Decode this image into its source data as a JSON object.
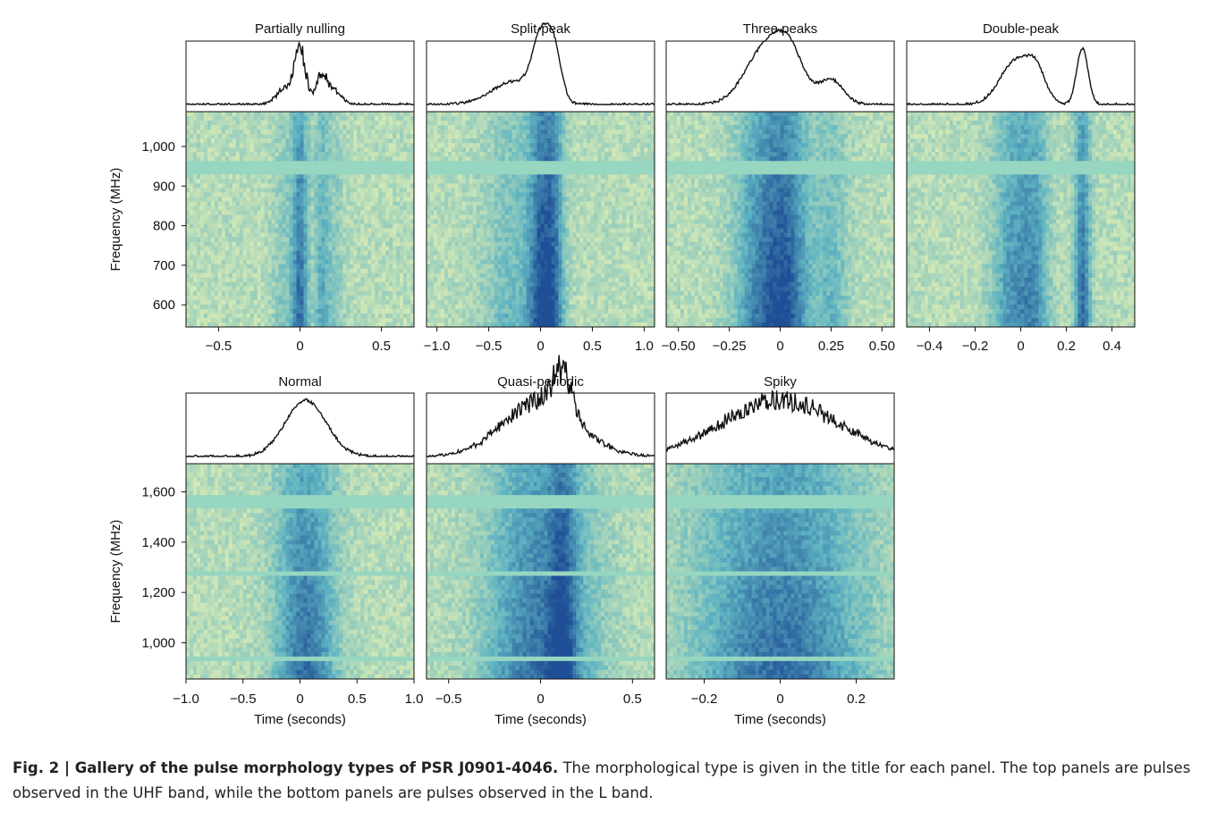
{
  "figure": {
    "caption_label": "Fig. 2 | Gallery of the pulse morphology types of PSR J0901-4046.",
    "caption_text": " The morphological type is given in the title for each panel. The top panels are pulses observed in the UHF band, while the bottom panels are pulses observed in the L band."
  },
  "colors": {
    "profile_line": "#111111",
    "map_low": "#e6f1b4",
    "map_mid": "#5fb4c2",
    "map_high": "#1f4f96",
    "flag_band": "#97d6c0"
  },
  "chart_data": [
    {
      "type": "heatmap",
      "title": "Partially nulling",
      "band": "UHF",
      "xlabel": "",
      "ylabel": "Frequency (MHz)",
      "xlim": [
        -0.7,
        0.7
      ],
      "ylim": [
        544,
        1088
      ],
      "xticks": [
        -0.5,
        0,
        0.5
      ],
      "xtick_labels": [
        "−0.5",
        "0",
        "0.5"
      ],
      "yticks": [
        600,
        700,
        800,
        900,
        1000
      ],
      "ytick_labels": [
        "600",
        "700",
        "800",
        "900",
        "1,000"
      ],
      "flagged_bands_mhz": [
        [
          930,
          962
        ]
      ],
      "profile_components": [
        {
          "center": -0.1,
          "width": 0.05,
          "amplitude": 0.25
        },
        {
          "center": 0.0,
          "width": 0.035,
          "amplitude": 0.95
        },
        {
          "center": 0.13,
          "width": 0.03,
          "amplitude": 0.45
        },
        {
          "center": 0.2,
          "width": 0.05,
          "amplitude": 0.25
        }
      ]
    },
    {
      "type": "heatmap",
      "title": "Split-peak",
      "band": "UHF",
      "xlabel": "",
      "ylabel": "",
      "xlim": [
        -1.1,
        1.1
      ],
      "ylim": [
        544,
        1088
      ],
      "xticks": [
        -1.0,
        -0.5,
        0,
        0.5,
        1.0
      ],
      "xtick_labels": [
        "−1.0",
        "−0.5",
        "0",
        "0.5",
        "1.0"
      ],
      "yticks": [],
      "ytick_labels": [],
      "flagged_bands_mhz": [
        [
          930,
          962
        ]
      ],
      "profile_components": [
        {
          "center": -0.25,
          "width": 0.22,
          "amplitude": 0.35
        },
        {
          "center": 0.0,
          "width": 0.08,
          "amplitude": 0.85
        },
        {
          "center": 0.13,
          "width": 0.07,
          "amplitude": 0.75
        }
      ]
    },
    {
      "type": "heatmap",
      "title": "Three peaks",
      "band": "UHF",
      "xlabel": "",
      "ylabel": "",
      "xlim": [
        -0.56,
        0.56
      ],
      "ylim": [
        544,
        1088
      ],
      "xticks": [
        -0.5,
        -0.25,
        0,
        0.25,
        0.5
      ],
      "xtick_labels": [
        "−0.50",
        "−0.25",
        "0",
        "0.25",
        "0.50"
      ],
      "yticks": [],
      "ytick_labels": [],
      "flagged_bands_mhz": [
        [
          930,
          962
        ]
      ],
      "profile_components": [
        {
          "center": -0.07,
          "width": 0.1,
          "amplitude": 0.8
        },
        {
          "center": 0.05,
          "width": 0.07,
          "amplitude": 0.55
        },
        {
          "center": 0.25,
          "width": 0.06,
          "amplitude": 0.35
        }
      ]
    },
    {
      "type": "heatmap",
      "title": "Double-peak",
      "band": "UHF",
      "xlabel": "",
      "ylabel": "",
      "xlim": [
        -0.5,
        0.5
      ],
      "ylim": [
        544,
        1088
      ],
      "xticks": [
        -0.4,
        -0.2,
        0,
        0.2,
        0.4
      ],
      "xtick_labels": [
        "−0.4",
        "−0.2",
        "0",
        "0.2",
        "0.4"
      ],
      "yticks": [],
      "ytick_labels": [],
      "flagged_bands_mhz": [
        [
          930,
          962
        ]
      ],
      "profile_components": [
        {
          "center": -0.02,
          "width": 0.07,
          "amplitude": 0.7
        },
        {
          "center": 0.07,
          "width": 0.04,
          "amplitude": 0.4
        },
        {
          "center": 0.27,
          "width": 0.025,
          "amplitude": 0.9
        }
      ]
    },
    {
      "type": "heatmap",
      "title": "Normal",
      "band": "L",
      "xlabel": "Time (seconds)",
      "ylabel": "Frequency (MHz)",
      "xlim": [
        -1.0,
        1.0
      ],
      "ylim": [
        856,
        1712
      ],
      "xticks": [
        -1.0,
        -0.5,
        0,
        0.5,
        1.0
      ],
      "xtick_labels": [
        "−1.0",
        "−0.5",
        "0",
        "0.5",
        "1.0"
      ],
      "yticks": [
        1000,
        1200,
        1400,
        1600
      ],
      "ytick_labels": [
        "1,000",
        "1,200",
        "1,400",
        "1,600"
      ],
      "flagged_bands_mhz": [
        [
          925,
          950
        ],
        [
          1265,
          1285
        ],
        [
          1530,
          1580
        ]
      ],
      "profile_components": [
        {
          "center": 0.05,
          "width": 0.18,
          "amplitude": 0.9
        }
      ]
    },
    {
      "type": "heatmap",
      "title": "Quasi-periodic",
      "band": "L",
      "xlabel": "Time (seconds)",
      "ylabel": "",
      "xlim": [
        -0.62,
        0.62
      ],
      "ylim": [
        856,
        1712
      ],
      "xticks": [
        -0.5,
        0,
        0.5
      ],
      "xtick_labels": [
        "−0.5",
        "0",
        "0.5"
      ],
      "yticks": [],
      "ytick_labels": [],
      "flagged_bands_mhz": [
        [
          925,
          950
        ],
        [
          1265,
          1285
        ],
        [
          1530,
          1580
        ]
      ],
      "profile_components": [
        {
          "center": 0.0,
          "width": 0.2,
          "amplitude": 0.7
        },
        {
          "center": 0.12,
          "width": 0.05,
          "amplitude": 0.5
        }
      ]
    },
    {
      "type": "heatmap",
      "title": "Spiky",
      "band": "L",
      "xlabel": "Time (seconds)",
      "ylabel": "",
      "xlim": [
        -0.3,
        0.3
      ],
      "ylim": [
        856,
        1712
      ],
      "xticks": [
        -0.2,
        0,
        0.2
      ],
      "xtick_labels": [
        "−0.2",
        "0",
        "0.2"
      ],
      "yticks": [],
      "ytick_labels": [],
      "flagged_bands_mhz": [
        [
          925,
          950
        ],
        [
          1265,
          1285
        ],
        [
          1530,
          1580
        ]
      ],
      "profile_components": [
        {
          "center": 0.0,
          "width": 0.15,
          "amplitude": 0.6
        }
      ]
    }
  ]
}
